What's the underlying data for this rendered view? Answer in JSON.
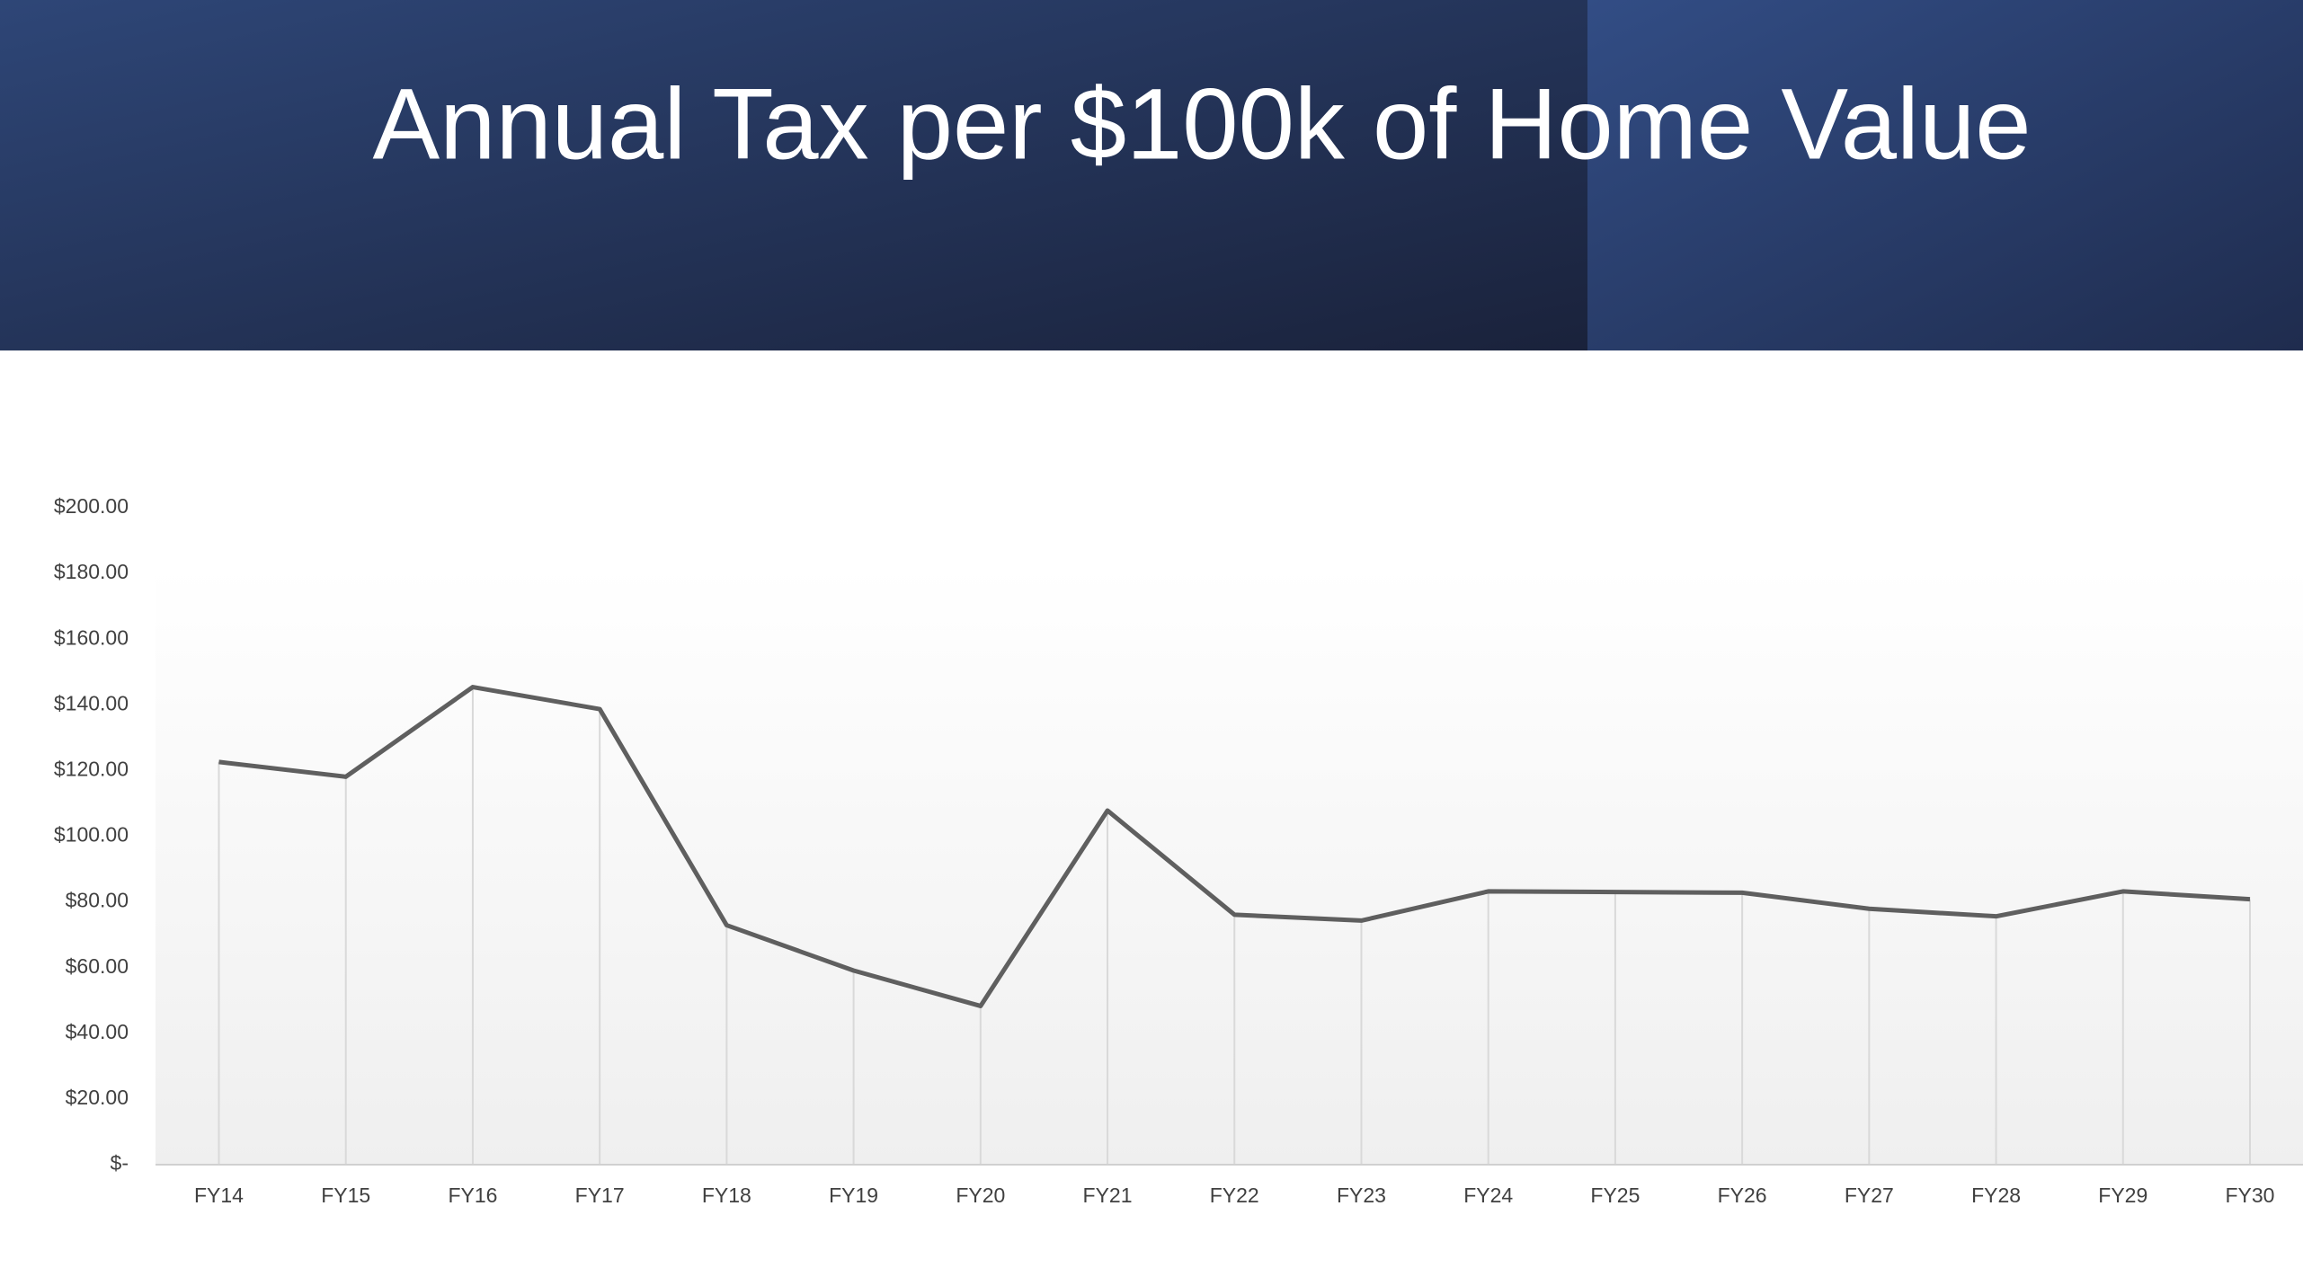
{
  "chart_data": {
    "type": "line",
    "title": "Annual Tax per $100k of Home Value",
    "categories": [
      "FY14",
      "FY15",
      "FY16",
      "FY17",
      "FY18",
      "FY19",
      "FY20",
      "FY21",
      "FY22",
      "FY23",
      "FY24",
      "FY25",
      "FY26",
      "FY27",
      "FY28",
      "FY29",
      "FY30"
    ],
    "values": [
      122.6,
      118.1,
      145.4,
      138.7,
      72.9,
      59.1,
      48.3,
      107.8,
      76.1,
      74.3,
      83.2,
      83.0,
      82.8,
      77.9,
      75.6,
      83.2,
      80.8
    ],
    "color": "#5f5f5f",
    "ylim": [
      0,
      200
    ],
    "yticks": [
      {
        "value": 0,
        "label": "$-"
      },
      {
        "value": 20,
        "label": "$20.00"
      },
      {
        "value": 40,
        "label": "$40.00"
      },
      {
        "value": 60,
        "label": "$60.00"
      },
      {
        "value": 80,
        "label": "$80.00"
      },
      {
        "value": 100,
        "label": "$100.00"
      },
      {
        "value": 120,
        "label": "$120.00"
      },
      {
        "value": 140,
        "label": "$140.00"
      },
      {
        "value": 160,
        "label": "$160.00"
      },
      {
        "value": 180,
        "label": "$180.00"
      },
      {
        "value": 200,
        "label": "$200.00"
      }
    ],
    "drop_lines": true
  }
}
